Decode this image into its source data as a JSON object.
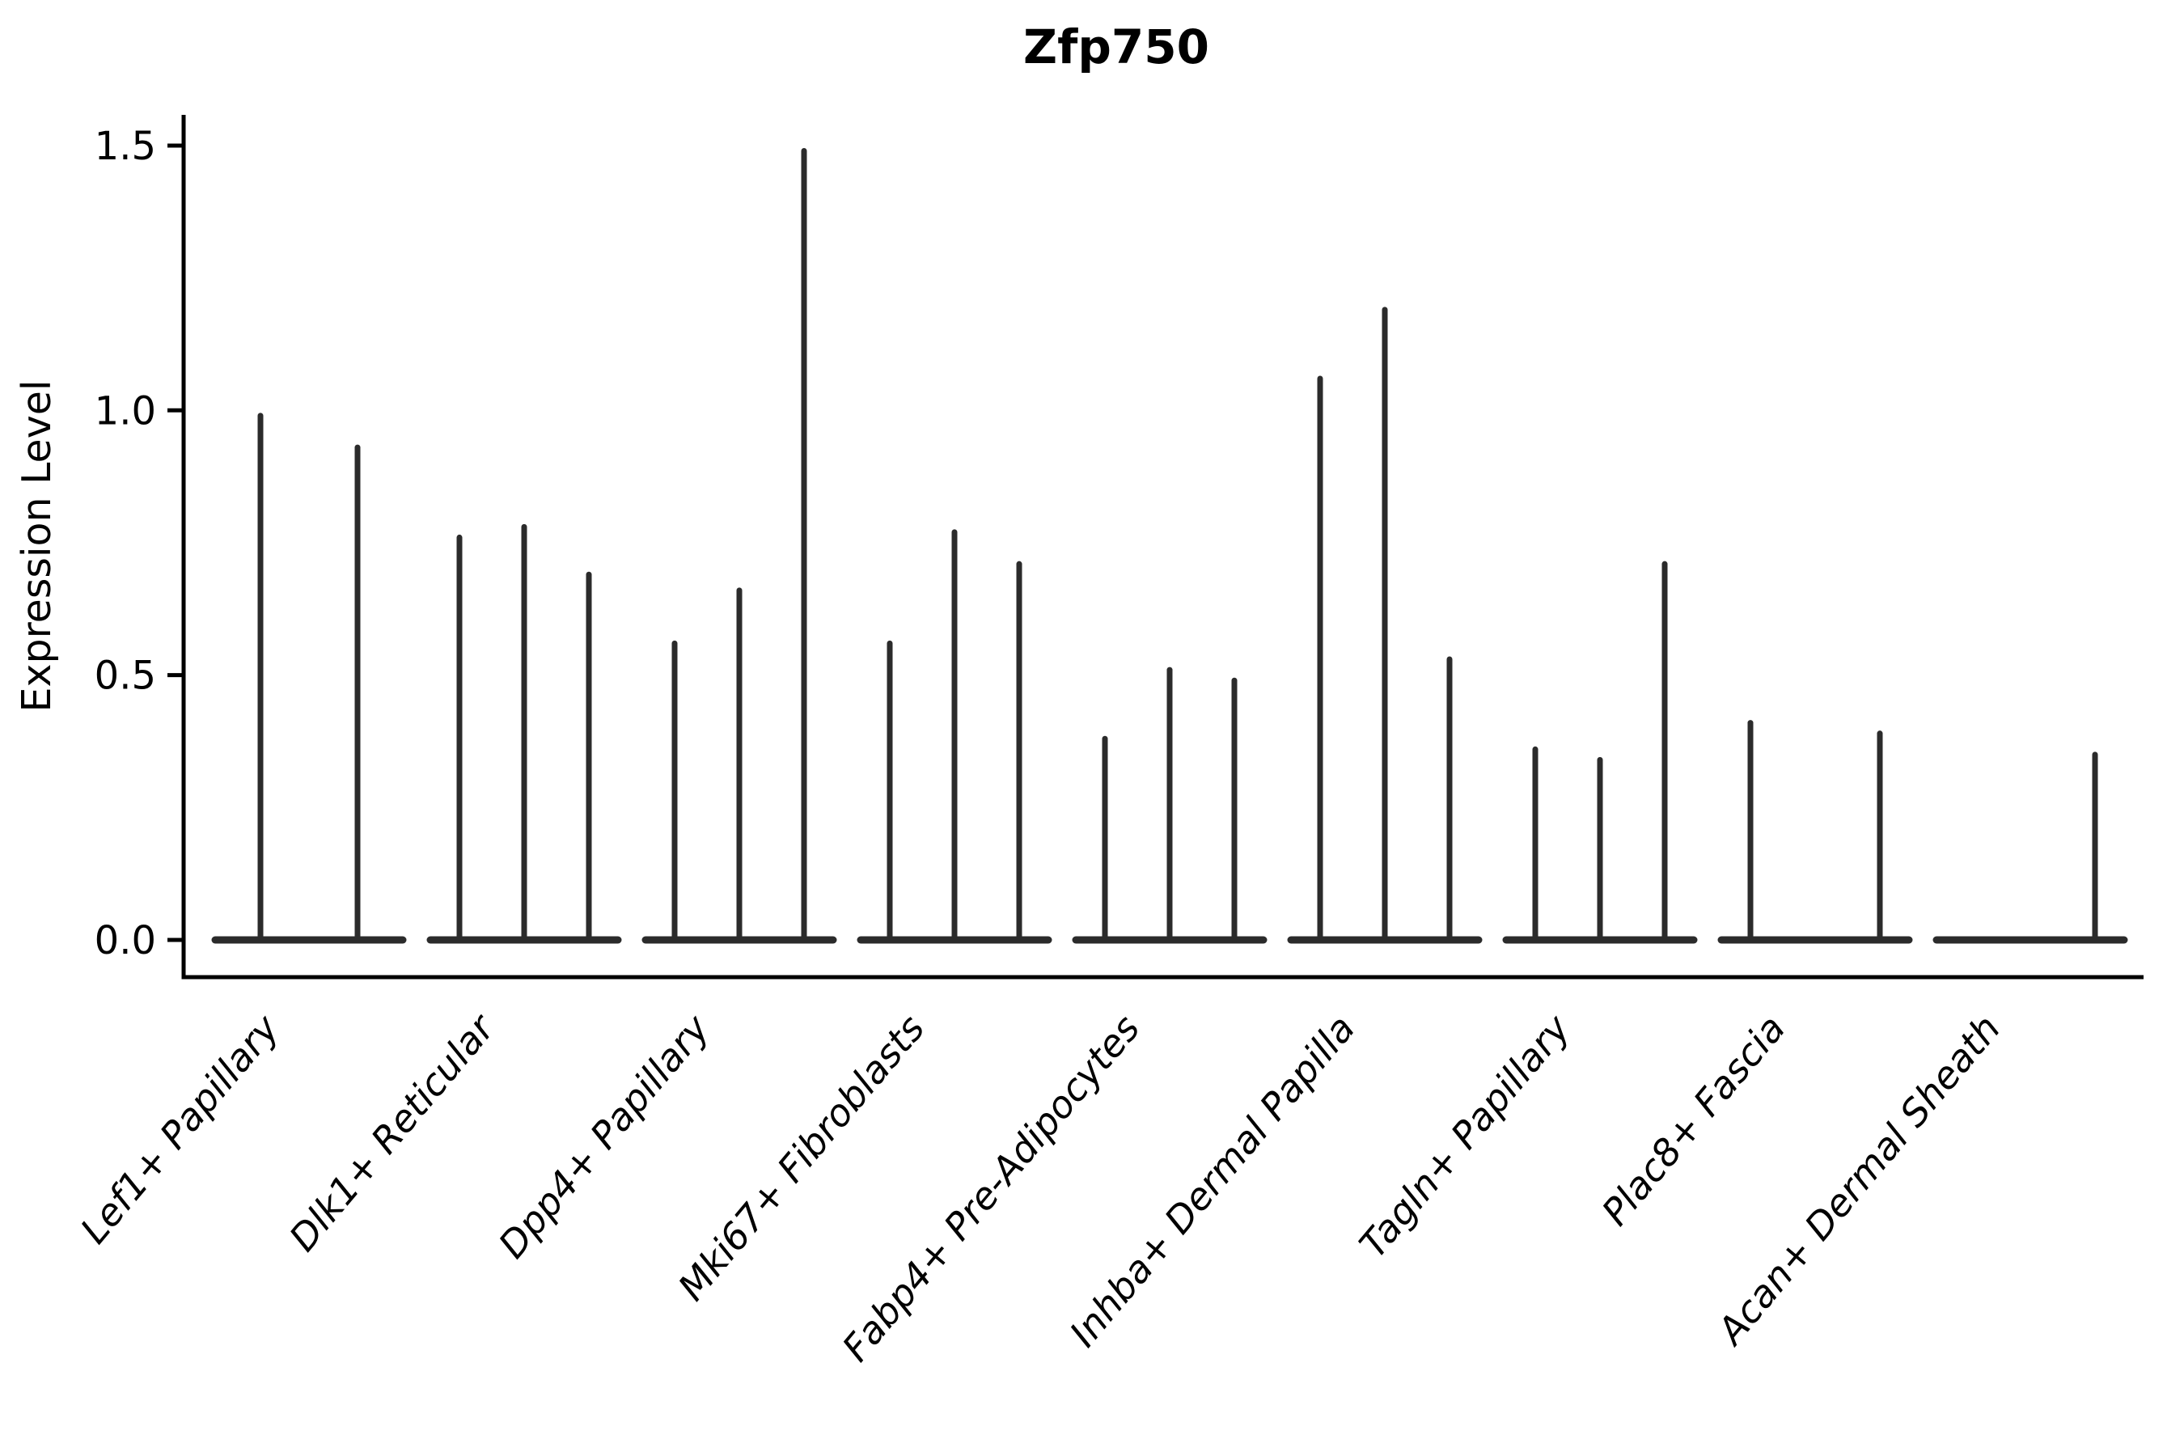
{
  "figure": {
    "title": "Zfp750",
    "ylabel": "Expression Level"
  },
  "chart_data": {
    "type": "violin",
    "subtype": "stick-violin (sparse expression, each violin collapses to a baseline with a single peak spike)",
    "title": "Zfp750",
    "xlabel": "",
    "ylabel": "Expression Level",
    "ylim": [
      0,
      1.5
    ],
    "ytick_labels": [
      "0.0",
      "0.5",
      "1.0",
      "1.5"
    ],
    "ytick_values": [
      0.0,
      0.5,
      1.0,
      1.5
    ],
    "grid": false,
    "legend": "none",
    "categories": [
      "Lef1+ Papillary",
      "Dlk1+ Reticular",
      "Dpp4+ Papillary",
      "Mki67+ Fibroblasts",
      "Fabp4+ Pre-Adipocytes",
      "Inhba+ Dermal Papilla",
      "Tagln+ Papillary",
      "Plac8+ Fascia",
      "Acan+ Dermal Sheath"
    ],
    "groups": [
      {
        "category": "Lef1+ Papillary",
        "violin_peaks": [
          0.99,
          0.93
        ]
      },
      {
        "category": "Dlk1+ Reticular",
        "violin_peaks": [
          0.76,
          0.78,
          0.69
        ]
      },
      {
        "category": "Dpp4+ Papillary",
        "violin_peaks": [
          0.56,
          0.66,
          1.49
        ]
      },
      {
        "category": "Mki67+ Fibroblasts",
        "violin_peaks": [
          0.56,
          0.77,
          0.71
        ]
      },
      {
        "category": "Fabp4+ Pre-Adipocytes",
        "violin_peaks": [
          0.38,
          0.51,
          0.49
        ]
      },
      {
        "category": "Inhba+ Dermal Papilla",
        "violin_peaks": [
          1.06,
          1.19,
          0.53
        ]
      },
      {
        "category": "Tagln+ Papillary",
        "violin_peaks": [
          0.36,
          0.34,
          0.71
        ]
      },
      {
        "category": "Plac8+ Fascia",
        "violin_peaks": [
          0.41,
          0.0,
          0.39
        ]
      },
      {
        "category": "Acan+ Dermal Sheath",
        "violin_peaks": [
          0.0,
          0.0,
          0.35
        ]
      }
    ],
    "peak_note": "violin_peaks = maximum Expression Level reached by each violin within the category; 0.0 means the violin is flat at the baseline (no spike)",
    "colors": {
      "violin_stroke": "#2b2b2b",
      "axis": "#000000",
      "background": "#ffffff"
    },
    "xtick_rotation_deg": 50,
    "xtick_font_style": "italic"
  }
}
